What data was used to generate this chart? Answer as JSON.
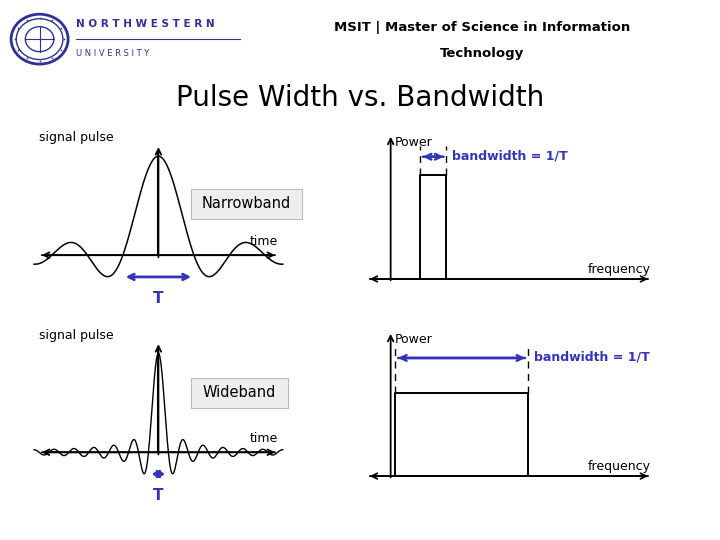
{
  "title": "Pulse Width vs. Bandwidth",
  "header_bar_color": "#2E3192",
  "background_color": "#ffffff",
  "narrowband_label": "Narrowband",
  "wideband_label": "Wideband",
  "signal_pulse_label": "signal pulse",
  "power_label": "Power",
  "time_label": "time",
  "frequency_label": "frequency",
  "T_label": "T",
  "bandwidth_label": "bandwidth = 1/T",
  "blue_color": "#3333BB",
  "black_color": "#000000",
  "title_fontsize": 20,
  "box_facecolor": "#EEEEEE",
  "box_edgecolor": "#BBBBBB",
  "logo_color": "#2E3192",
  "nw_text_top": "N O R T H W E S T E R N",
  "nw_text_bot": "U N I V E R S I T Y",
  "msit_line1": "MSIT | Master of Science in Information",
  "msit_line2": "Technology"
}
